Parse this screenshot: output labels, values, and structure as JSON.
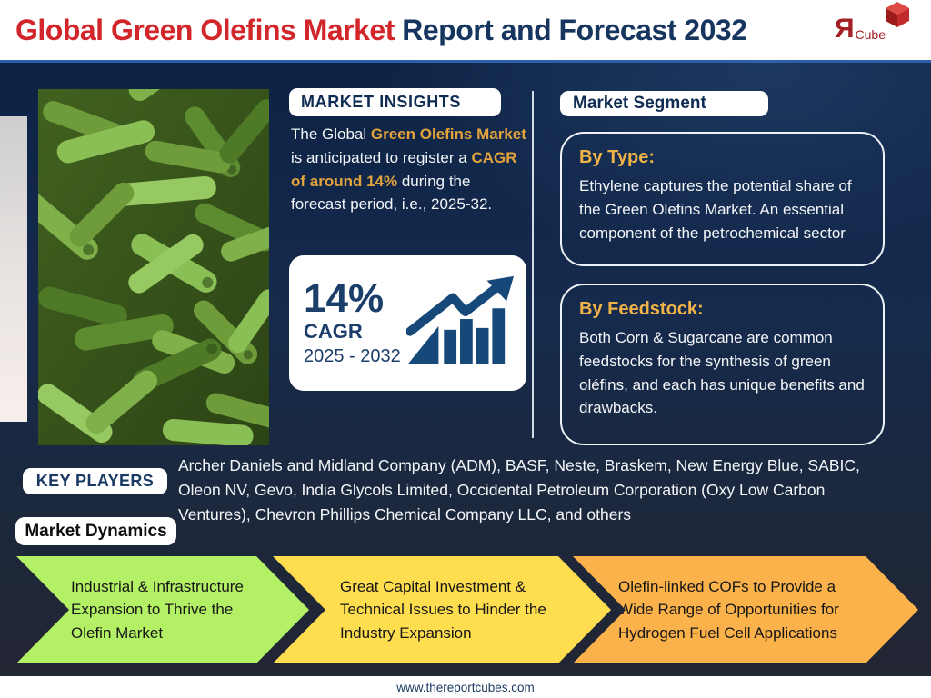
{
  "header": {
    "title_red": "Global Green Olefins Market",
    "title_dark": " Report and Forecast 2032",
    "logo": {
      "letter": "Я",
      "text": "Cube",
      "icon": "red-cube-icon"
    }
  },
  "insights": {
    "pill": "MARKET INSIGHTS",
    "paragraph_parts": [
      {
        "text": "The Global ",
        "highlight": false
      },
      {
        "text": "Green Olefins Market",
        "highlight": true
      },
      {
        "text": " is anticipated to register a ",
        "highlight": false
      },
      {
        "text": "CAGR of around 14%",
        "highlight": true
      },
      {
        "text": " during the forecast period, i.e., 2025-32.",
        "highlight": false
      }
    ],
    "cagr": {
      "value": "14%",
      "label": "CAGR",
      "period": "2025 - 2032",
      "icon": "rising-bar-chart-icon"
    }
  },
  "segments": {
    "pill": "Market Segment",
    "cards": [
      {
        "heading": "By Type:",
        "body": "Ethylene captures the potential share of the Green Olefins Market. An essential component of the petrochemical sector"
      },
      {
        "heading": "By Feedstock:",
        "body": "Both Corn & Sugarcane are common feedstocks for the synthesis of green oléfins, and each has unique benefits and drawbacks."
      }
    ]
  },
  "key_players": {
    "pill": "KEY PLAYERS",
    "text": "Archer Daniels and Midland Company (ADM), BASF, Neste, Braskem, New Energy Blue, SABIC, Oleon NV, Gevo, India Glycols Limited, Occidental Petroleum Corporation (Oxy Low Carbon Ventures), Chevron Phillips Chemical Company LLC, and others"
  },
  "dynamics": {
    "pill": "Market Dynamics",
    "arrows": [
      {
        "text": "Industrial & Infrastructure Expansion to Thrive the Olefin Market",
        "color": "#b3f065"
      },
      {
        "text": "Great Capital Investment & Technical Issues to Hinder the Industry Expansion",
        "color": "#fedd4f"
      },
      {
        "text": "Olefin-linked COFs to Provide a Wide Range of Opportunities for Hydrogen Fuel Cell Applications",
        "color": "#fbb24a"
      }
    ]
  },
  "footer": {
    "url": "www.thereportcubes.com"
  },
  "colors": {
    "title_red": "#d3262b",
    "title_navy": "#16355f",
    "background_navy_top": "#0d2344",
    "background_bottom": "#232633",
    "gold_highlight": "#e3a33c",
    "gold_heading": "#f0b347",
    "card_navy": "#1b3e6b",
    "header_rule_blue": "#2e5fa8",
    "arrow_green": "#b3f065",
    "arrow_yellow": "#fedd4f",
    "arrow_orange": "#fbb24a"
  }
}
